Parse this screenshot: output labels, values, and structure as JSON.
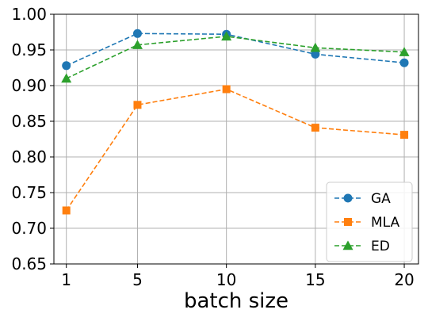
{
  "chart_data": {
    "type": "line",
    "title": "",
    "xlabel": "batch size",
    "ylabel": "",
    "categories": [
      "1",
      "5",
      "10",
      "15",
      "20"
    ],
    "x": [
      1,
      5,
      10,
      15,
      20
    ],
    "xlim": [
      0.3,
      20.8
    ],
    "ylim": [
      0.65,
      1.0
    ],
    "yticks": [
      "0.65",
      "0.70",
      "0.75",
      "0.80",
      "0.85",
      "0.90",
      "0.95",
      "1.00"
    ],
    "grid": true,
    "legend": "lower-right",
    "series": [
      {
        "name": "GA",
        "color": "#1f77b4",
        "marker": "circle",
        "values": [
          0.928,
          0.973,
          0.972,
          0.944,
          0.932
        ]
      },
      {
        "name": "MLA",
        "color": "#ff7f0e",
        "marker": "square",
        "values": [
          0.725,
          0.873,
          0.895,
          0.841,
          0.831
        ]
      },
      {
        "name": "ED",
        "color": "#2ca02c",
        "marker": "triangle",
        "values": [
          0.91,
          0.957,
          0.969,
          0.953,
          0.947
        ]
      }
    ]
  }
}
